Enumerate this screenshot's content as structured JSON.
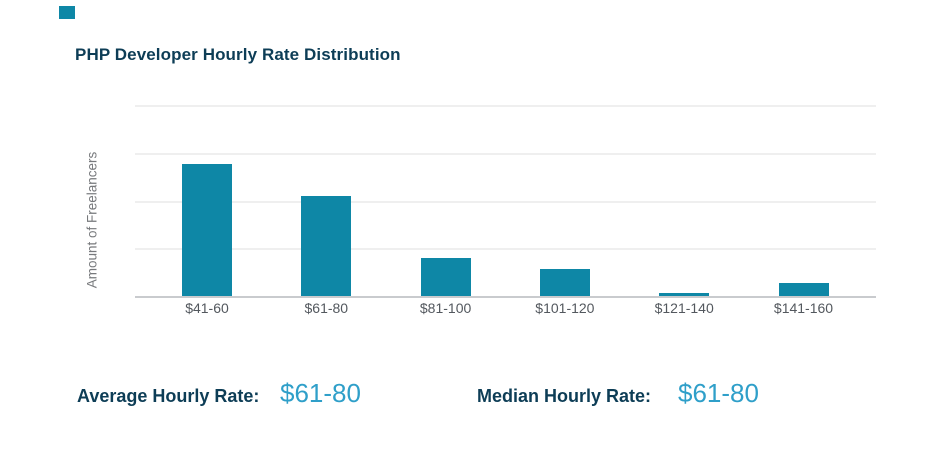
{
  "brand": {
    "mark_color": "#0e87a6"
  },
  "header": {
    "title": "PHP Developer Hourly Rate Distribution"
  },
  "chart_data": {
    "type": "bar",
    "title": "PHP Developer Hourly Rate Distribution",
    "categories": [
      "$41-60",
      "$61-80",
      "$81-100",
      "$101-120",
      "$121-140",
      "$141-160"
    ],
    "values": [
      2.76,
      2.09,
      0.8,
      0.57,
      0.06,
      0.27
    ],
    "xlabel": "",
    "ylabel": "Amount of Freelancers",
    "ylim": [
      0,
      4
    ],
    "grid": true,
    "y_tick_labels_visible": false,
    "legend": "none",
    "bar_color": "#0e87a6",
    "gridline_color": "#efefef",
    "axis_line_color": "#c9cbce"
  },
  "stats": {
    "average": {
      "label": "Average Hourly Rate:",
      "value": "$61-80"
    },
    "median": {
      "label": "Median Hourly Rate:",
      "value": "$61-80"
    }
  },
  "colors": {
    "title_text": "#0d3d56",
    "stat_value_text": "#2f9fc9",
    "x_label_text": "#53585e",
    "y_label_text": "#77797c"
  }
}
